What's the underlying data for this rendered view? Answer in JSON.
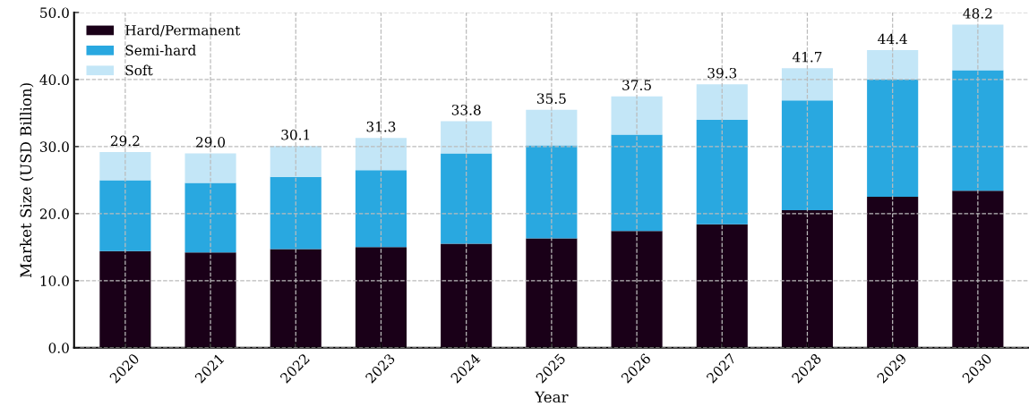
{
  "chart_data": {
    "type": "bar",
    "stacked": true,
    "xlabel": "Year",
    "ylabel": "Market Size (USD Billion)",
    "categories": [
      "2020",
      "2021",
      "2022",
      "2023",
      "2024",
      "2025",
      "2026",
      "2027",
      "2028",
      "2029",
      "2030"
    ],
    "series": [
      {
        "name": "Hard/Permanent",
        "color": "#1a0018",
        "values": [
          14.4,
          14.2,
          14.7,
          15.0,
          15.5,
          16.3,
          17.4,
          18.4,
          20.5,
          22.5,
          23.4
        ]
      },
      {
        "name": "Semi-hard",
        "color": "#29a8e0",
        "values": [
          10.6,
          10.4,
          10.8,
          11.5,
          13.5,
          13.9,
          14.4,
          15.6,
          16.4,
          17.5,
          18.0
        ]
      },
      {
        "name": "Soft",
        "color": "#c3e6f7",
        "values": [
          4.2,
          4.4,
          4.6,
          4.8,
          4.8,
          5.3,
          5.7,
          5.3,
          4.8,
          4.4,
          6.8
        ]
      }
    ],
    "totals": [
      "29.2",
      "29.0",
      "30.1",
      "31.3",
      "33.8",
      "35.5",
      "37.5",
      "39.3",
      "41.7",
      "44.4",
      "48.2"
    ],
    "ylim": [
      0,
      50
    ],
    "yticks": [
      {
        "value": 0,
        "label": "0.0"
      },
      {
        "value": 10,
        "label": "10.0"
      },
      {
        "value": 20,
        "label": "20.0"
      },
      {
        "value": 30,
        "label": "30.0"
      },
      {
        "value": 40,
        "label": "40.0"
      },
      {
        "value": 50,
        "label": "50.0"
      }
    ],
    "grid": true,
    "legend": "top left"
  }
}
